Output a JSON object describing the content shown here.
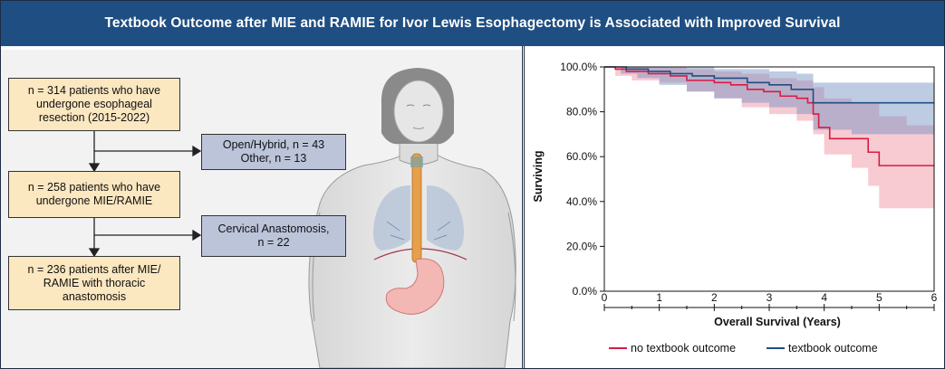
{
  "banner": {
    "title": "Textbook Outcome after MIE and RAMIE for Ivor Lewis Esophagectomy is Associated with Improved Survival"
  },
  "flowchart": {
    "box1": "n = 314 patients who have\nundergone esophageal\nresection (2015-2022)",
    "box2": "n = 258 patients who have\nundergone MIE/RAMIE",
    "box3": "n = 236 patients after MIE/\nRAMIE with thoracic\nanastomosis",
    "excl1": "Open/Hybrid, n = 43\nOther, n = 13",
    "excl2": "Cervical Anastomosis,\nn = 22"
  },
  "colors": {
    "banner": "#1f4e82",
    "cream_box": "#fbe7c0",
    "blue_box": "#bcc4da",
    "no_textbook": "#d81b43",
    "textbook": "#1f4e82"
  },
  "chart_data": {
    "type": "line",
    "xlabel": "Overall Survival (Years)",
    "ylabel": "Surviving",
    "xlim": [
      0,
      6
    ],
    "ylim": [
      0,
      100
    ],
    "xticks": [
      "0",
      "1",
      "2",
      "3",
      "4",
      "5",
      "6"
    ],
    "yticks": [
      "0.0%",
      "20.0%",
      "40.0%",
      "60.0%",
      "80.0%",
      "100.0%"
    ],
    "legend_position": "bottom",
    "series": [
      {
        "name": "no textbook outcome",
        "color": "#d81b43",
        "step": [
          [
            0,
            100
          ],
          [
            0.2,
            99
          ],
          [
            0.4,
            98
          ],
          [
            0.8,
            97
          ],
          [
            1.2,
            96
          ],
          [
            1.5,
            94
          ],
          [
            2,
            93
          ],
          [
            2.3,
            92
          ],
          [
            2.6,
            90
          ],
          [
            2.9,
            89
          ],
          [
            3.2,
            87
          ],
          [
            3.5,
            86
          ],
          [
            3.7,
            84
          ],
          [
            3.8,
            79
          ],
          [
            3.9,
            73
          ],
          [
            4.1,
            68
          ],
          [
            4.6,
            68
          ],
          [
            4.8,
            62
          ],
          [
            5.0,
            56
          ],
          [
            6,
            56
          ]
        ],
        "ci_upper": [
          [
            0,
            100
          ],
          [
            0.5,
            100
          ],
          [
            1,
            100
          ],
          [
            1.5,
            99
          ],
          [
            2,
            98
          ],
          [
            2.5,
            97
          ],
          [
            3,
            95
          ],
          [
            3.5,
            94
          ],
          [
            3.8,
            91
          ],
          [
            4,
            86
          ],
          [
            4.5,
            84
          ],
          [
            5,
            78
          ],
          [
            5.5,
            74
          ],
          [
            6,
            72
          ]
        ],
        "ci_lower": [
          [
            0,
            100
          ],
          [
            0.2,
            96
          ],
          [
            0.5,
            94
          ],
          [
            1,
            93
          ],
          [
            1.5,
            89
          ],
          [
            2,
            86
          ],
          [
            2.5,
            82
          ],
          [
            3,
            79
          ],
          [
            3.5,
            76
          ],
          [
            3.8,
            70
          ],
          [
            4,
            61
          ],
          [
            4.5,
            55
          ],
          [
            4.8,
            47
          ],
          [
            5,
            37
          ],
          [
            6,
            37
          ]
        ]
      },
      {
        "name": "textbook outcome",
        "color": "#1f4e82",
        "step": [
          [
            0,
            100
          ],
          [
            0.4,
            99
          ],
          [
            0.8,
            98
          ],
          [
            1.2,
            97
          ],
          [
            1.6,
            96
          ],
          [
            2,
            95
          ],
          [
            2.6,
            93
          ],
          [
            3,
            92
          ],
          [
            3.4,
            90
          ],
          [
            3.8,
            84
          ],
          [
            6,
            84
          ]
        ],
        "ci_upper": [
          [
            0,
            100
          ],
          [
            0.5,
            100
          ],
          [
            1,
            100
          ],
          [
            1.5,
            100
          ],
          [
            2,
            99
          ],
          [
            2.5,
            99
          ],
          [
            3,
            98
          ],
          [
            3.5,
            97
          ],
          [
            3.8,
            93
          ],
          [
            6,
            92
          ]
        ],
        "ci_lower": [
          [
            0,
            100
          ],
          [
            0.3,
            97
          ],
          [
            0.6,
            95
          ],
          [
            1,
            92
          ],
          [
            1.5,
            89
          ],
          [
            2,
            86
          ],
          [
            2.5,
            84
          ],
          [
            3,
            82
          ],
          [
            3.5,
            79
          ],
          [
            3.8,
            72
          ],
          [
            4.5,
            70
          ],
          [
            6,
            70
          ]
        ]
      }
    ]
  }
}
